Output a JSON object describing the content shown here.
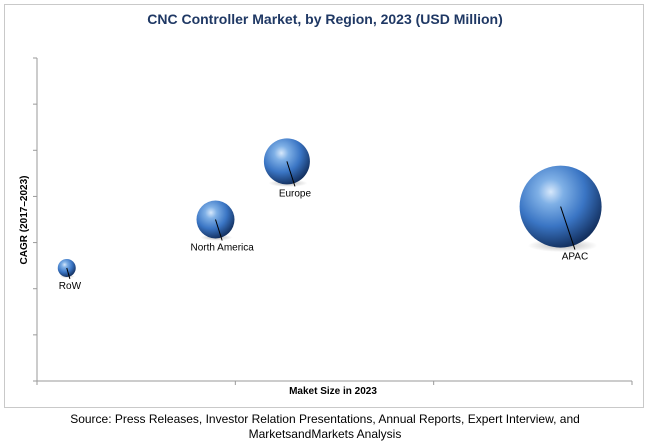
{
  "chart_data": {
    "type": "scatter",
    "title": "CNC Controller Market, by Region, 2023 (USD Million)",
    "xlabel": "Maket Size in 2023",
    "ylabel": "CAGR (2017–2023)",
    "grid": false,
    "bubble_color": "#3a75c4",
    "points": [
      {
        "label": "RoW",
        "x": 5,
        "y": 3.5,
        "size": 0.2
      },
      {
        "label": "North America",
        "x": 30,
        "y": 5.0,
        "size": 0.45
      },
      {
        "label": "Europe",
        "x": 42,
        "y": 6.8,
        "size": 0.55
      },
      {
        "label": "APAC",
        "x": 88,
        "y": 5.4,
        "size": 1.0
      }
    ],
    "xlim": [
      0,
      100
    ],
    "ylim": [
      0,
      10
    ]
  },
  "footer": {
    "source_line1": "Source: Press Releases, Investor Relation Presentations, Annual Reports, Expert Interview, and",
    "source_line2": "MarketsandMarkets Analysis"
  }
}
